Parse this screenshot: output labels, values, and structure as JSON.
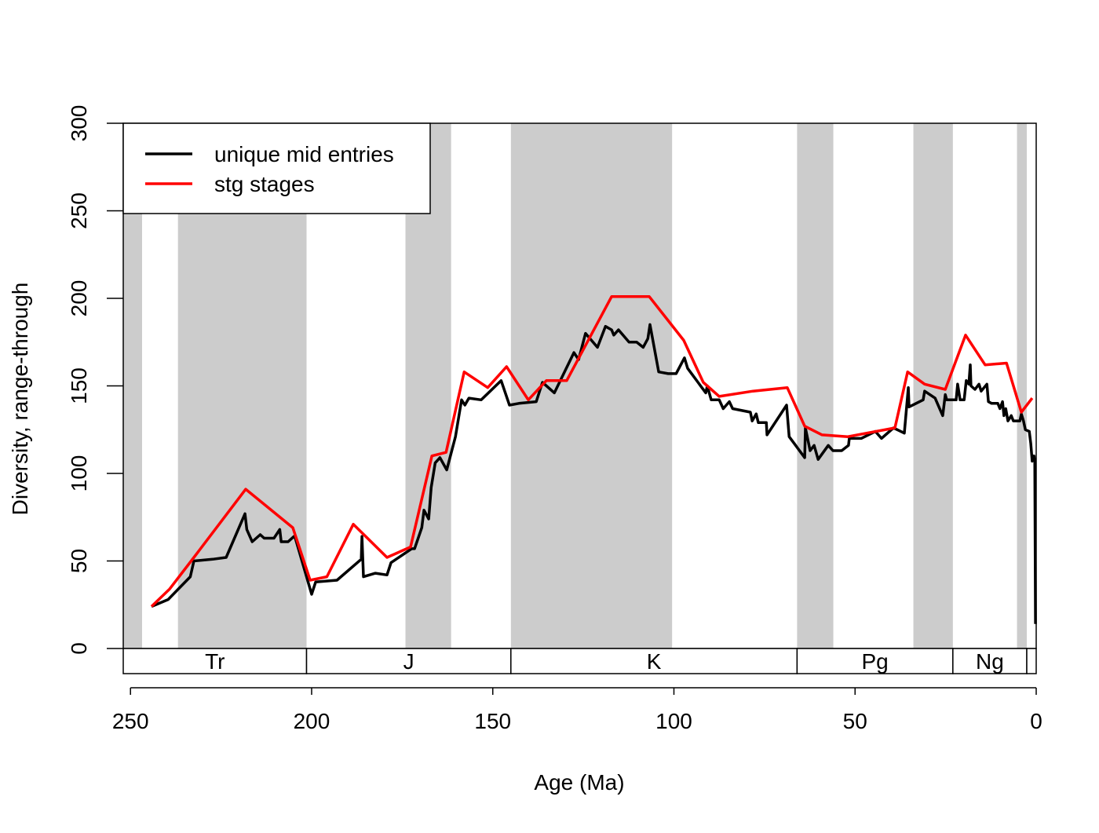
{
  "chart_data": {
    "type": "line",
    "xlabel": "Age (Ma)",
    "ylabel": "Diversity, range-through",
    "xlim": [
      252,
      0
    ],
    "ylim": [
      0,
      300
    ],
    "xticks": [
      250,
      200,
      150,
      100,
      50,
      0
    ],
    "yticks": [
      0,
      50,
      100,
      150,
      200,
      250,
      300
    ],
    "legend": "topleft",
    "bands": [
      [
        252,
        246.8
      ],
      [
        236.9,
        201.4
      ],
      [
        174.1,
        161.5
      ],
      [
        145,
        100.5
      ],
      [
        66,
        56
      ],
      [
        33.9,
        23
      ],
      [
        5.3,
        2.6
      ]
    ],
    "band_color": "#cccccc",
    "periods": [
      {
        "label": "Tr",
        "start": 252,
        "end": 201.4
      },
      {
        "label": "J",
        "start": 201.4,
        "end": 145
      },
      {
        "label": "K",
        "start": 145,
        "end": 66
      },
      {
        "label": "Pg",
        "start": 66,
        "end": 23
      },
      {
        "label": "Ng",
        "start": 23,
        "end": 2.6
      },
      {
        "label": null,
        "start": 2.6,
        "end": 0
      }
    ],
    "series": [
      {
        "name": "unique mid entries",
        "color": "#000000",
        "x": [
          244.2,
          239.6,
          233.5,
          232.5,
          227.3,
          223.6,
          218.4,
          217.9,
          216.4,
          214.2,
          213.1,
          210.4,
          208.8,
          208.4,
          206.5,
          204.9,
          204.5,
          200,
          198.9,
          193,
          186.3,
          186.1,
          185.7,
          182.4,
          179.2,
          178.1,
          172.4,
          171.6,
          169.6,
          169,
          167.7,
          167,
          165.9,
          164.6,
          162.7,
          160.3,
          158.6,
          157.7,
          156.6,
          153.2,
          147.7,
          145.4,
          142.8,
          138,
          136.3,
          133,
          127.6,
          126.3,
          124.4,
          121.1,
          118.9,
          117.2,
          116.6,
          115.3,
          112.4,
          110.3,
          108.5,
          107.2,
          106.6,
          104.2,
          101.6,
          99.4,
          97.1,
          96.2,
          91.2,
          90.8,
          89.7,
          87.5,
          86.4,
          84.7,
          83.8,
          78.9,
          78.4,
          77.3,
          76.7,
          74.5,
          74.3,
          68.9,
          68.2,
          63.9,
          63.7,
          62.4,
          61.3,
          60.2,
          57.4,
          56.1,
          53.7,
          51.8,
          51.6,
          48.3,
          44.4,
          42.7,
          39.4,
          36.4,
          35.3,
          35.1,
          31.2,
          30.8,
          27.9,
          25.8,
          25.1,
          24.7,
          22.1,
          21.7,
          21,
          19.9,
          19.3,
          18.6,
          18.2,
          18,
          16.9,
          15.8,
          15.2,
          13.6,
          13.2,
          12.3,
          10.6,
          10,
          9.3,
          8.9,
          8.4,
          7.8,
          6.9,
          6.3,
          4.5,
          4.1,
          3.5,
          3,
          1.9,
          1.5,
          1.1,
          0.6,
          0.4,
          0.2
        ],
        "values": [
          24,
          28,
          41,
          50,
          51,
          52,
          77,
          68,
          61,
          65,
          63,
          63,
          68,
          61,
          61,
          64,
          63,
          31,
          38,
          39,
          51,
          64,
          41,
          43,
          42,
          49,
          57,
          57,
          69,
          79,
          74,
          92,
          106,
          109,
          102,
          121,
          142,
          139,
          143,
          142,
          153,
          139,
          140,
          141,
          152,
          146,
          169,
          165,
          180,
          172,
          184,
          182,
          179,
          182,
          175,
          175,
          172,
          177,
          185,
          158,
          157,
          157,
          166,
          160,
          146,
          150,
          142,
          142,
          137,
          141,
          137,
          135,
          130,
          134,
          129,
          129,
          122,
          139,
          121,
          109,
          126,
          113,
          116,
          108,
          116,
          113,
          113,
          116,
          120,
          120,
          124,
          120,
          126,
          123,
          149,
          138,
          142,
          147,
          143,
          133,
          145,
          142,
          142,
          151,
          142,
          142,
          153,
          151,
          162,
          150,
          148,
          151,
          147,
          151,
          141,
          140,
          140,
          137,
          141,
          133,
          137,
          130,
          133,
          130,
          130,
          134,
          130,
          125,
          124,
          117,
          107,
          110,
          107,
          14
        ]
      },
      {
        "name": "stg stages",
        "color": "#ff0000",
        "x": [
          244.2,
          239.2,
          232.5,
          218.2,
          205.2,
          200.4,
          195.8,
          188.5,
          179.2,
          172.7,
          166.8,
          162.9,
          157.9,
          151.4,
          146.2,
          140.2,
          135.2,
          129.6,
          117.2,
          106.8,
          97.3,
          91.9,
          87.5,
          78.2,
          68.7,
          63.9,
          59.1,
          52,
          39,
          35.5,
          30.8,
          25.1,
          19.5,
          14.1,
          8.2,
          4.1,
          1.1
        ],
        "values": [
          24,
          34,
          52,
          91,
          69,
          39,
          41,
          71,
          52,
          58,
          110,
          112,
          158,
          149,
          161,
          142,
          153,
          153,
          201,
          201,
          176,
          152,
          144,
          147,
          149,
          127,
          122,
          121,
          126,
          158,
          151,
          148,
          179,
          162,
          163,
          135,
          143
        ]
      }
    ]
  }
}
